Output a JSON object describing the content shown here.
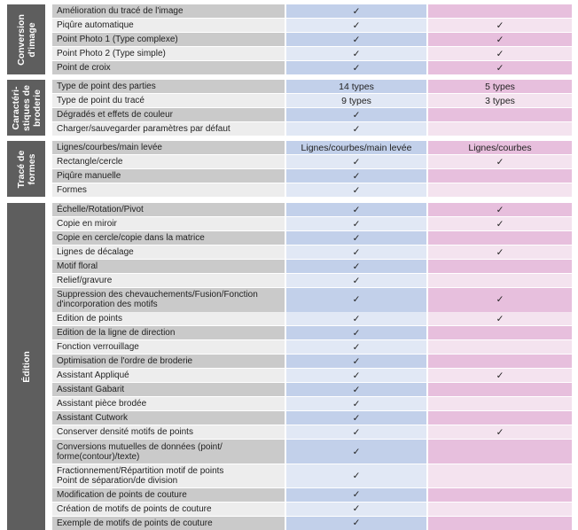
{
  "sections": [
    {
      "label_lines": [
        "Conversion",
        "d'image"
      ],
      "rows": [
        {
          "feature": [
            "Amélioration du tracé de l'image"
          ],
          "col_a": "✓",
          "col_b": ""
        },
        {
          "feature": [
            "Piqûre automatique"
          ],
          "col_a": "✓",
          "col_b": "✓"
        },
        {
          "feature": [
            "Point Photo 1 (Type complexe)"
          ],
          "col_a": "✓",
          "col_b": "✓"
        },
        {
          "feature": [
            "Point Photo 2 (Type simple)"
          ],
          "col_a": "✓",
          "col_b": "✓"
        },
        {
          "feature": [
            "Point de croix"
          ],
          "col_a": "✓",
          "col_b": "✓"
        }
      ]
    },
    {
      "label_lines": [
        "Caractéri-",
        "stiques de",
        "broderie"
      ],
      "rows": [
        {
          "feature": [
            "Type de point des parties"
          ],
          "col_a": "14 types",
          "col_b": "5 types"
        },
        {
          "feature": [
            "Type de point du tracé"
          ],
          "col_a": "9 types",
          "col_b": "3 types"
        },
        {
          "feature": [
            "Dégradés et effets de couleur"
          ],
          "col_a": "✓",
          "col_b": ""
        },
        {
          "feature": [
            "Charger/sauvegarder paramètres par défaut"
          ],
          "col_a": "✓",
          "col_b": ""
        }
      ]
    },
    {
      "label_lines": [
        "Tracé de",
        "formes"
      ],
      "rows": [
        {
          "feature": [
            "Lignes/courbes/main levée"
          ],
          "col_a": "Lignes/courbes/main levée",
          "col_b": "Lignes/courbes"
        },
        {
          "feature": [
            "Rectangle/cercle"
          ],
          "col_a": "✓",
          "col_b": "✓"
        },
        {
          "feature": [
            "Piqûre manuelle"
          ],
          "col_a": "✓",
          "col_b": ""
        },
        {
          "feature": [
            "Formes"
          ],
          "col_a": "✓",
          "col_b": ""
        }
      ]
    },
    {
      "label_lines": [
        "Édition"
      ],
      "rows": [
        {
          "feature": [
            "Échelle/Rotation/Pivot"
          ],
          "col_a": "✓",
          "col_b": "✓"
        },
        {
          "feature": [
            "Copie en miroir"
          ],
          "col_a": "✓",
          "col_b": "✓"
        },
        {
          "feature": [
            "Copie en cercle/copie dans la matrice"
          ],
          "col_a": "✓",
          "col_b": ""
        },
        {
          "feature": [
            "Lignes de décalage"
          ],
          "col_a": "✓",
          "col_b": "✓"
        },
        {
          "feature": [
            "Motif floral"
          ],
          "col_a": "✓",
          "col_b": ""
        },
        {
          "feature": [
            "Relief/gravure"
          ],
          "col_a": "✓",
          "col_b": ""
        },
        {
          "feature": [
            "Suppression des chevauchements/Fusion/Fonction",
            "d'incorporation des motifs"
          ],
          "col_a": "✓",
          "col_b": "✓"
        },
        {
          "feature": [
            "Edition de points"
          ],
          "col_a": "✓",
          "col_b": "✓"
        },
        {
          "feature": [
            "Edition de la ligne de direction"
          ],
          "col_a": "✓",
          "col_b": ""
        },
        {
          "feature": [
            "Fonction verrouillage"
          ],
          "col_a": "✓",
          "col_b": ""
        },
        {
          "feature": [
            "Optimisation de l'ordre de broderie"
          ],
          "col_a": "✓",
          "col_b": ""
        },
        {
          "feature": [
            "Assistant Appliqué"
          ],
          "col_a": "✓",
          "col_b": "✓"
        },
        {
          "feature": [
            "Assistant Gabarit"
          ],
          "col_a": "✓",
          "col_b": ""
        },
        {
          "feature": [
            "Assistant pièce brodée"
          ],
          "col_a": "✓",
          "col_b": ""
        },
        {
          "feature": [
            "Assistant Cutwork"
          ],
          "col_a": "✓",
          "col_b": ""
        },
        {
          "feature": [
            "Conserver densité motifs de points"
          ],
          "col_a": "✓",
          "col_b": "✓"
        },
        {
          "feature": [
            "Conversions mutuelles de données (point/",
            "forme(contour)/texte)"
          ],
          "col_a": "✓",
          "col_b": ""
        },
        {
          "feature": [
            "Fractionnement/Répartition motif de points",
            "Point de séparation/de division"
          ],
          "col_a": "✓",
          "col_b": ""
        },
        {
          "feature": [
            "Modification de points de couture"
          ],
          "col_a": "✓",
          "col_b": ""
        },
        {
          "feature": [
            "Création de motifs de points de couture"
          ],
          "col_a": "✓",
          "col_b": ""
        },
        {
          "feature": [
            "Exemple de motifs de points de couture"
          ],
          "col_a": "✓",
          "col_b": ""
        }
      ]
    }
  ],
  "colors": {
    "label_bg": "#5e5e5e",
    "feature_dark": "#cacaca",
    "feature_light": "#ededed",
    "col_a_dark": "#c2d0ea",
    "col_a_light": "#e1e8f5",
    "col_b_dark": "#e7bfdd",
    "col_b_light": "#f4e3ef"
  }
}
